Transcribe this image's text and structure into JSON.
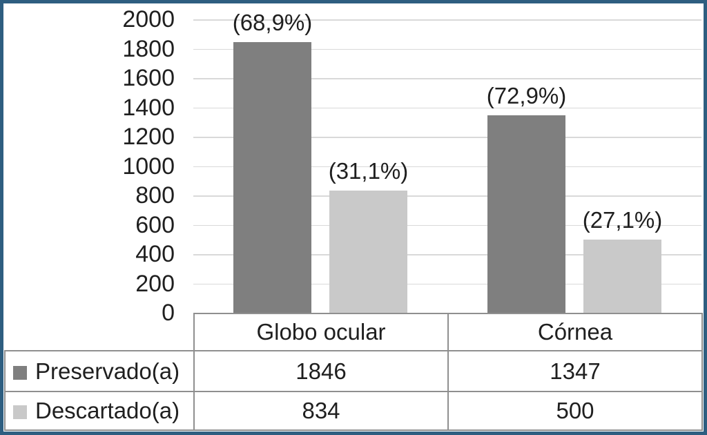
{
  "frame": {
    "border_color": "#2e5e80"
  },
  "chart_data": {
    "type": "bar",
    "title": "",
    "xlabel": "",
    "ylabel": "",
    "categories": [
      "Globo ocular",
      "Córnea"
    ],
    "series": [
      {
        "name": "Preservado(a)",
        "color": "#7f7f7f",
        "values": [
          1846,
          1347
        ],
        "percent_labels": [
          "(68,9%)",
          "(72,9%)"
        ]
      },
      {
        "name": "Descartado(a)",
        "color": "#c9c9c9",
        "values": [
          834,
          500
        ],
        "percent_labels": [
          "(31,1%)",
          "(27,1%)"
        ]
      }
    ],
    "ylim": [
      0,
      2000
    ],
    "ytick_step": 200,
    "y_ticks": [
      "2000",
      "1800",
      "1600",
      "1400",
      "1200",
      "1000",
      "800",
      "600",
      "400",
      "200",
      "0"
    ],
    "grid": "horizontal",
    "gridline_color": "#d9d9d9",
    "legend_position": "table-left"
  },
  "table": {
    "category_headers": [
      "Globo ocular",
      "Córnea"
    ],
    "rows": [
      {
        "label": "Preservado(a)",
        "values": [
          "1846",
          "1347"
        ]
      },
      {
        "label": "Descartado(a)",
        "values": [
          "834",
          "500"
        ]
      }
    ]
  }
}
